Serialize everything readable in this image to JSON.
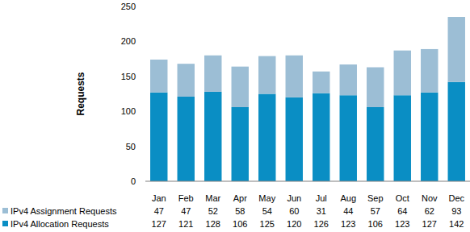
{
  "chart_data": {
    "type": "bar",
    "stacked": true,
    "grid": false,
    "y_label": "Requests",
    "categories": [
      "Jan",
      "Feb",
      "Mar",
      "Apr",
      "May",
      "Jun",
      "Jul",
      "Aug",
      "Sep",
      "Oct",
      "Nov",
      "Dec"
    ],
    "series": [
      {
        "name": "IPv4 Allocation Requests",
        "color": "#0a8ec4",
        "values": [
          127,
          121,
          128,
          106,
          125,
          120,
          126,
          123,
          106,
          123,
          127,
          142
        ]
      },
      {
        "name": "IPv4 Assignment Requests",
        "color": "#9cbed5",
        "values": [
          47,
          47,
          52,
          58,
          54,
          60,
          31,
          44,
          57,
          64,
          62,
          93
        ]
      }
    ],
    "ylim": [
      0,
      250
    ],
    "yticks": [
      0,
      50,
      100,
      150,
      200,
      250
    ]
  }
}
